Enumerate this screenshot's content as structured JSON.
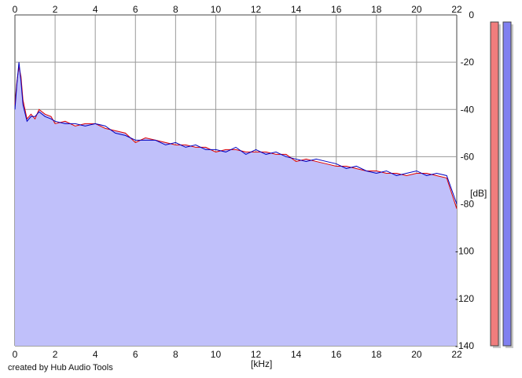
{
  "credit": "created by Hub Audio Tools",
  "colors": {
    "fill": "#c0c0fa",
    "grid": "#999999",
    "left_channel": "#e00000",
    "right_channel": "#0000c0",
    "meter_left": "#f07d7d",
    "meter_right": "#8080f0",
    "frame": "#444444"
  },
  "chart_data": {
    "type": "area",
    "title": "",
    "xlabel": "[kHz]",
    "ylabel": "[dB]",
    "xlim": [
      0,
      22
    ],
    "ylim": [
      -140,
      0
    ],
    "x_ticks": [
      0,
      2,
      4,
      6,
      8,
      10,
      12,
      14,
      16,
      18,
      20,
      22
    ],
    "y_ticks": [
      0,
      -20,
      -40,
      -60,
      -80,
      -100,
      -120,
      -140
    ],
    "grid": true,
    "x_axis_position": "top and bottom",
    "y_axis_position": "right",
    "x": [
      0.0,
      0.1,
      0.2,
      0.3,
      0.4,
      0.6,
      0.8,
      1.0,
      1.2,
      1.5,
      1.8,
      2.0,
      2.5,
      3.0,
      3.5,
      4.0,
      4.5,
      5.0,
      5.5,
      6.0,
      6.5,
      7.0,
      7.5,
      8.0,
      8.5,
      9.0,
      9.5,
      10.0,
      10.5,
      11.0,
      11.5,
      12.0,
      12.5,
      13.0,
      13.5,
      14.0,
      14.5,
      15.0,
      15.5,
      16.0,
      16.5,
      17.0,
      17.5,
      18.0,
      18.5,
      19.0,
      19.5,
      20.0,
      20.5,
      21.0,
      21.5,
      22.0
    ],
    "series": [
      {
        "values": [
          -38,
          -28,
          -22,
          -26,
          -36,
          -44,
          -42,
          -44,
          -40,
          -42,
          -43,
          -46,
          -45,
          -47,
          -46,
          -46,
          -48,
          -49,
          -50,
          -54,
          -52,
          -53,
          -54,
          -55,
          -55,
          -56,
          -56,
          -58,
          -57,
          -57,
          -58,
          -58,
          -58,
          -59,
          -59,
          -62,
          -61,
          -62,
          -63,
          -64,
          -64,
          -65,
          -66,
          -66,
          -67,
          -67,
          -68,
          -67,
          -67,
          -68,
          -69,
          -82
        ]
      },
      {
        "values": [
          -40,
          -29,
          -20,
          -28,
          -38,
          -45,
          -43,
          -43,
          -41,
          -43,
          -44,
          -45,
          -46,
          -46,
          -47,
          -46,
          -47,
          -50,
          -51,
          -53,
          -53,
          -53,
          -55,
          -54,
          -56,
          -55,
          -57,
          -57,
          -58,
          -56,
          -59,
          -57,
          -59,
          -58,
          -60,
          -61,
          -62,
          -61,
          -62,
          -63,
          -65,
          -64,
          -66,
          -67,
          -66,
          -68,
          -67,
          -66,
          -68,
          -67,
          -68,
          -80
        ]
      }
    ]
  }
}
